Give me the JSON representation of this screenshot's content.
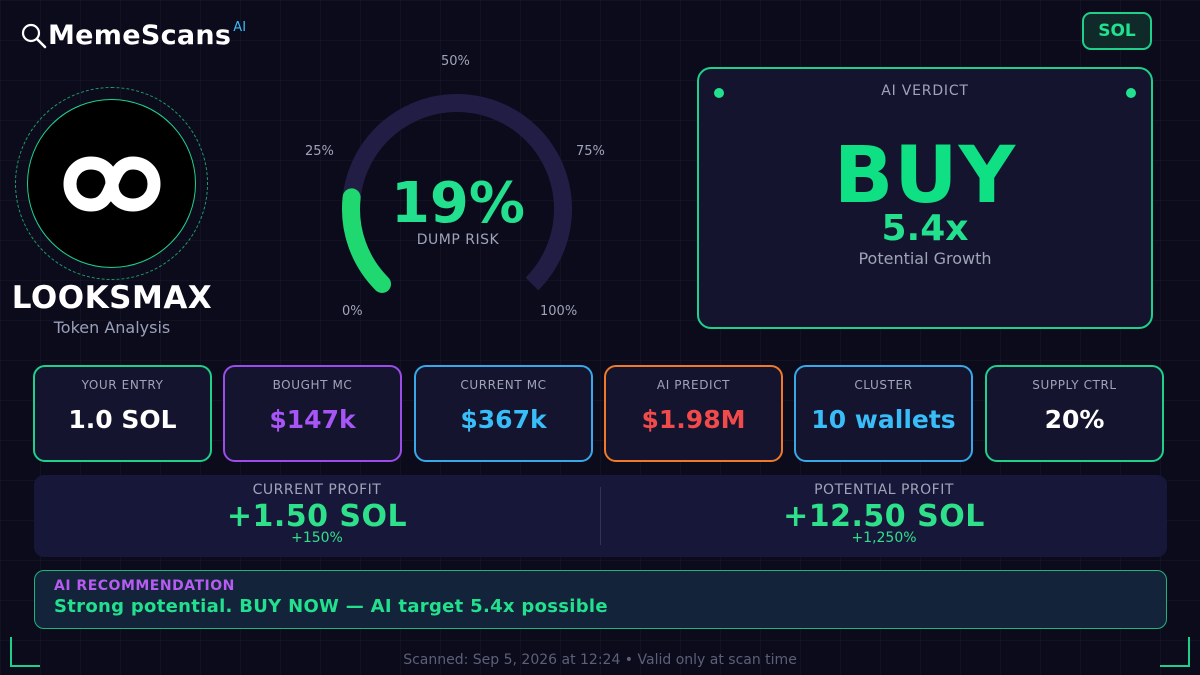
{
  "header": {
    "brand_name": "MemeScans",
    "brand_badge": "AI",
    "chain": "SOL"
  },
  "token": {
    "name": "LOOKSMAX",
    "subtitle": "Token Analysis"
  },
  "gauge": {
    "value_label": "19%",
    "value": 19,
    "label": "DUMP RISK",
    "ticks": {
      "t0": "0%",
      "t25": "25%",
      "t50": "50%",
      "t75": "75%",
      "t100": "100%"
    },
    "colors": {
      "track": "#221d45",
      "fill": "#1fd870"
    }
  },
  "verdict": {
    "title": "AI VERDICT",
    "decision": "BUY",
    "multiplier": "5.4x",
    "subtitle": "Potential Growth"
  },
  "stats": [
    {
      "label": "YOUR ENTRY",
      "value": "1.0 SOL",
      "color": "#ffffff",
      "border": "#1fd08a"
    },
    {
      "label": "BOUGHT MC",
      "value": "$147k",
      "color": "#a855f7",
      "border": "#9b4dea"
    },
    {
      "label": "CURRENT MC",
      "value": "$367k",
      "color": "#38bdf8",
      "border": "#38a8e8"
    },
    {
      "label": "AI PREDICT",
      "value": "$1.98M",
      "color": "#f04a4a",
      "border": "#f07a2a"
    },
    {
      "label": "CLUSTER",
      "value": "10 wallets",
      "color": "#38bdf8",
      "border": "#38a8e8"
    },
    {
      "label": "SUPPLY CTRL",
      "value": "20%",
      "color": "#ffffff",
      "border": "#1fd08a"
    }
  ],
  "profit": {
    "current": {
      "label": "CURRENT PROFIT",
      "value": "+1.50 SOL",
      "pct": "+150%"
    },
    "potential": {
      "label": "POTENTIAL PROFIT",
      "value": "+12.50 SOL",
      "pct": "+1,250%"
    }
  },
  "recommendation": {
    "title": "AI RECOMMENDATION",
    "text": "Strong potential. BUY NOW — AI target 5.4x possible"
  },
  "footer": {
    "text": "Scanned: Sep 5, 2026 at 12:24  •  Valid only at scan time"
  }
}
